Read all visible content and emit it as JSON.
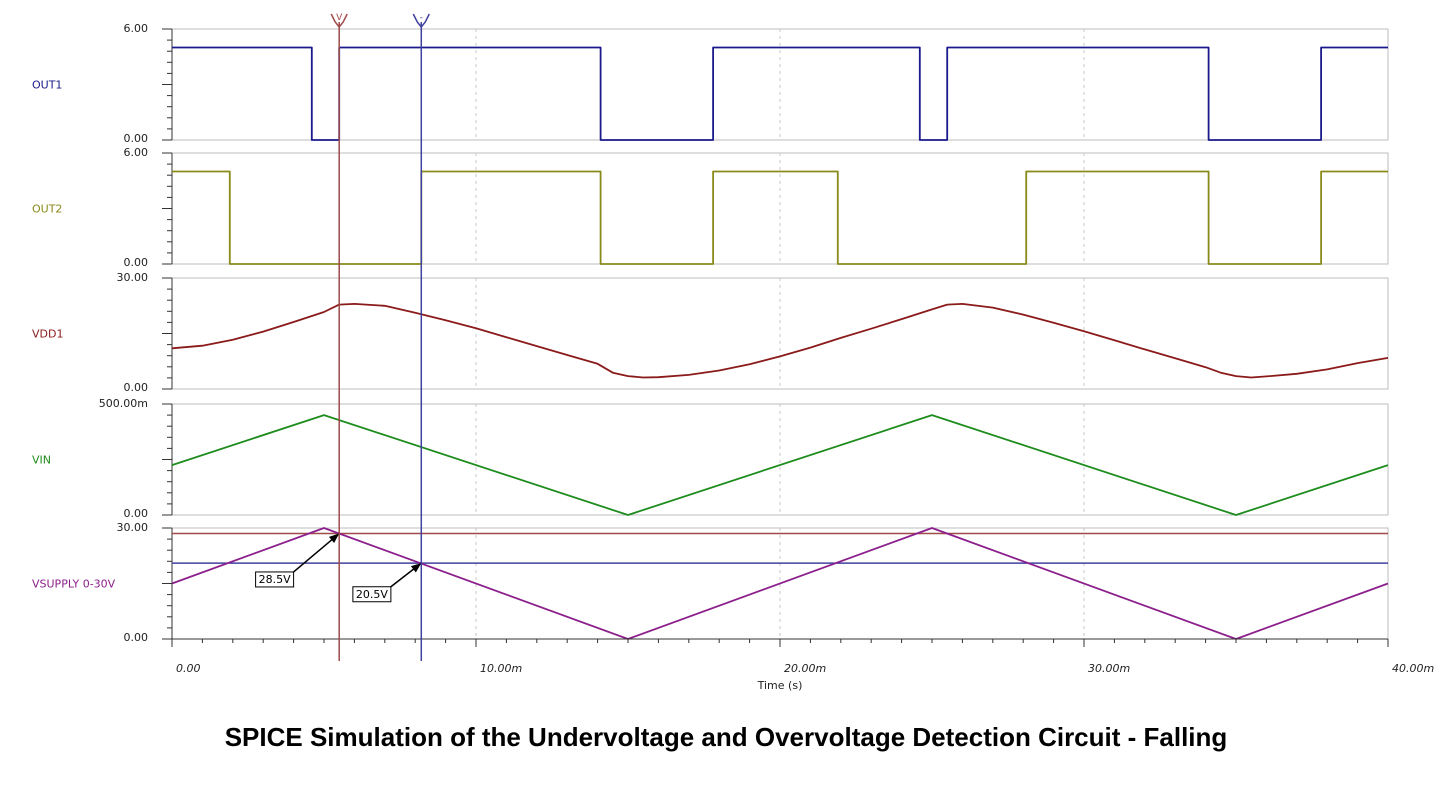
{
  "caption": "SPICE Simulation of the Undervoltage and Overvoltage Detection Circuit - Falling",
  "colors": {
    "out1": "#1a1a8c",
    "out2": "#8a8a1a",
    "vdd1": "#8b1a1a",
    "vin": "#1e8c1e",
    "vsupply": "#8b1f8b",
    "cursor_a": "#a04a4a",
    "cursor_b": "#4040a0",
    "grid": "#c8c8c8",
    "axis": "#333333"
  },
  "chart_data": {
    "type": "line",
    "xlabel": "Time (s)",
    "xlim": [
      0,
      40
    ],
    "x_unit_suffix": "m",
    "x_ticks": [
      0,
      10,
      20,
      30,
      40
    ],
    "x_tick_labels": [
      "0.00",
      "10.00m",
      "20.00m",
      "30.00m",
      "40.00m"
    ],
    "cursors": [
      {
        "name": "A",
        "x": 5.5,
        "marker": "V"
      },
      {
        "name": "B",
        "x": 8.2,
        "marker": "-"
      }
    ],
    "panels": [
      {
        "label": "OUT1",
        "color_key": "out1",
        "ylim": [
          0,
          6
        ],
        "y_tick_labels": {
          "top": "6.00",
          "bottom": "0.00"
        },
        "series": [
          {
            "name": "OUT1",
            "x": [
              0,
              4.6,
              4.6,
              5.5,
              5.5,
              14.1,
              14.1,
              17.8,
              17.8,
              24.6,
              24.6,
              25.5,
              25.5,
              34.1,
              34.1,
              37.8,
              37.8,
              40
            ],
            "y": [
              5,
              5,
              0,
              0,
              5,
              5,
              0,
              0,
              5,
              5,
              0,
              0,
              5,
              5,
              0,
              0,
              5,
              5
            ]
          }
        ]
      },
      {
        "label": "OUT2",
        "color_key": "out2",
        "ylim": [
          0,
          6
        ],
        "y_tick_labels": {
          "top": "6.00",
          "bottom": "0.00"
        },
        "series": [
          {
            "name": "OUT2",
            "x": [
              0,
              1.9,
              1.9,
              8.2,
              8.2,
              14.1,
              14.1,
              17.8,
              17.8,
              21.9,
              21.9,
              28.1,
              28.1,
              34.1,
              34.1,
              37.8,
              37.8,
              40
            ],
            "y": [
              5,
              5,
              0,
              0,
              5,
              5,
              0,
              0,
              5,
              5,
              0,
              0,
              5,
              5,
              0,
              0,
              5,
              5
            ]
          }
        ]
      },
      {
        "label": "VDD1",
        "color_key": "vdd1",
        "ylim": [
          0,
          30
        ],
        "y_tick_labels": {
          "top": "30.00",
          "bottom": "0.00"
        },
        "series": [
          {
            "name": "VDD1",
            "x": [
              0,
              1,
              2,
              3,
              4,
              5,
              5.5,
              6,
              7,
              8,
              9,
              10,
              11,
              12,
              13,
              14,
              14.5,
              15,
              15.5,
              16,
              17,
              18,
              19,
              20,
              21,
              22,
              23,
              24,
              25,
              25.5,
              26,
              27,
              28,
              29,
              30,
              31,
              32,
              33,
              34,
              34.5,
              35,
              35.5,
              36,
              37,
              38,
              39,
              40
            ],
            "y": [
              11,
              11.7,
              13.3,
              15.5,
              18.1,
              20.8,
              22.8,
              23,
              22.5,
              20.6,
              18.6,
              16.4,
              14.0,
              11.6,
              9.2,
              6.8,
              4.4,
              3.5,
              3.1,
              3.2,
              3.8,
              5.0,
              6.7,
              8.8,
              11.2,
              13.8,
              16.3,
              18.9,
              21.5,
              22.8,
              23,
              22.0,
              20.1,
              17.9,
              15.6,
              13.2,
              10.7,
              8.3,
              5.9,
              4.4,
              3.5,
              3.1,
              3.4,
              4.1,
              5.3,
              7.0,
              8.4
            ]
          }
        ]
      },
      {
        "label": "VIN",
        "color_key": "vin",
        "ylim": [
          0,
          500
        ],
        "y_tick_labels": {
          "top": "500.00m",
          "bottom": "0.00"
        },
        "series": [
          {
            "name": "VIN",
            "x": [
              0,
              5,
              15,
              25,
              35,
              40
            ],
            "y": [
              225,
              450,
              0,
              450,
              0,
              225
            ]
          }
        ]
      },
      {
        "label": "VSUPPLY 0-30V",
        "color_key": "vsupply",
        "ylim": [
          0,
          30
        ],
        "y_tick_labels": {
          "top": "30.00",
          "bottom": "0.00"
        },
        "series": [
          {
            "name": "VSUPPLY 0-30V",
            "x": [
              0,
              5,
              15,
              25,
              35,
              40
            ],
            "y": [
              15,
              30,
              0,
              30,
              0,
              15
            ]
          }
        ],
        "hlines": [
          {
            "y": 28.5,
            "color_key": "cursor_a"
          },
          {
            "y": 20.5,
            "color_key": "cursor_b"
          }
        ],
        "annotations": [
          {
            "text": "28.5V",
            "x": 5.5,
            "y": 28.5,
            "label_x": 4.0,
            "label_y": 16.5
          },
          {
            "text": "20.5V",
            "x": 8.2,
            "y": 20.5,
            "label_x": 7.2,
            "label_y": 12.5
          }
        ]
      }
    ]
  }
}
